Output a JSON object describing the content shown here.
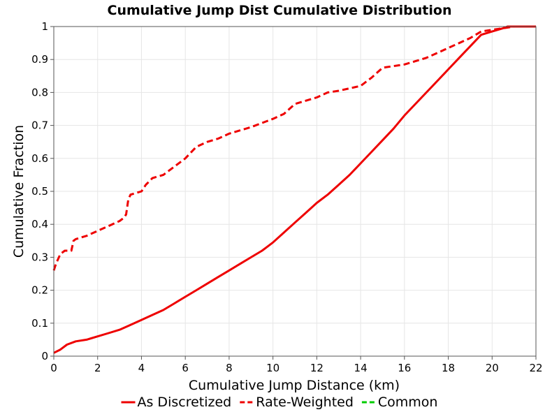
{
  "chart_data": {
    "type": "line",
    "title": "Cumulative Jump Dist Cumulative Distribution",
    "xlabel": "Cumulative Jump Distance (km)",
    "ylabel": "Cumulative Fraction",
    "xlim": [
      0,
      22
    ],
    "ylim": [
      0,
      1
    ],
    "xticks": [
      "0",
      "2",
      "4",
      "6",
      "8",
      "10",
      "12",
      "14",
      "16",
      "18",
      "20",
      "22"
    ],
    "yticks": [
      "0",
      "0.1",
      "0.2",
      "0.3",
      "0.4",
      "0.5",
      "0.6",
      "0.7",
      "0.8",
      "0.9",
      "1"
    ],
    "grid": true,
    "legend_position": "bottom",
    "series": [
      {
        "name": "As Discretized",
        "color": "#ee0000",
        "dash": "solid",
        "x": [
          0,
          0.3,
          0.6,
          1.0,
          1.5,
          2.0,
          2.5,
          3.0,
          3.5,
          4.0,
          4.5,
          5.0,
          5.5,
          6.0,
          6.5,
          7.0,
          7.5,
          8.0,
          8.5,
          9.0,
          9.5,
          10.0,
          10.5,
          11.0,
          11.5,
          12.0,
          12.5,
          13.0,
          13.5,
          14.0,
          14.5,
          15.0,
          15.5,
          16.0,
          16.5,
          17.0,
          17.5,
          18.0,
          18.5,
          19.0,
          19.5,
          20.0,
          20.5,
          20.7,
          21.0,
          22.0
        ],
        "values": [
          0.01,
          0.02,
          0.035,
          0.045,
          0.05,
          0.06,
          0.07,
          0.08,
          0.095,
          0.11,
          0.125,
          0.14,
          0.16,
          0.18,
          0.2,
          0.22,
          0.24,
          0.26,
          0.28,
          0.3,
          0.32,
          0.345,
          0.375,
          0.405,
          0.435,
          0.465,
          0.49,
          0.52,
          0.55,
          0.585,
          0.62,
          0.655,
          0.69,
          0.73,
          0.765,
          0.8,
          0.835,
          0.87,
          0.905,
          0.94,
          0.975,
          0.985,
          0.995,
          1.0,
          1.0,
          1.0
        ]
      },
      {
        "name": "Rate-Weighted",
        "color": "#ee0000",
        "dash": "dashed",
        "x": [
          0,
          0.1,
          0.3,
          0.5,
          0.8,
          0.9,
          1.0,
          1.5,
          2.0,
          2.5,
          3.0,
          3.2,
          3.3,
          3.4,
          3.5,
          4.0,
          4.2,
          4.5,
          5.0,
          5.5,
          6.0,
          6.5,
          7.0,
          7.5,
          8.0,
          9.0,
          10.0,
          10.5,
          11.0,
          11.5,
          12.0,
          12.5,
          13.0,
          14.0,
          14.5,
          15.0,
          16.0,
          16.5,
          17.0,
          17.5,
          18.0,
          18.5,
          19.0,
          19.5,
          20.0,
          20.5,
          21.0,
          22.0
        ],
        "values": [
          0.26,
          0.28,
          0.31,
          0.32,
          0.32,
          0.35,
          0.355,
          0.365,
          0.38,
          0.395,
          0.41,
          0.42,
          0.43,
          0.475,
          0.49,
          0.5,
          0.52,
          0.54,
          0.55,
          0.575,
          0.6,
          0.635,
          0.65,
          0.66,
          0.675,
          0.695,
          0.72,
          0.735,
          0.765,
          0.775,
          0.785,
          0.8,
          0.805,
          0.82,
          0.845,
          0.875,
          0.885,
          0.895,
          0.905,
          0.92,
          0.935,
          0.95,
          0.965,
          0.985,
          0.99,
          0.995,
          1.0,
          1.0
        ]
      },
      {
        "name": "Common",
        "color": "#00cc00",
        "dash": "dashed",
        "x": [],
        "values": []
      }
    ]
  }
}
